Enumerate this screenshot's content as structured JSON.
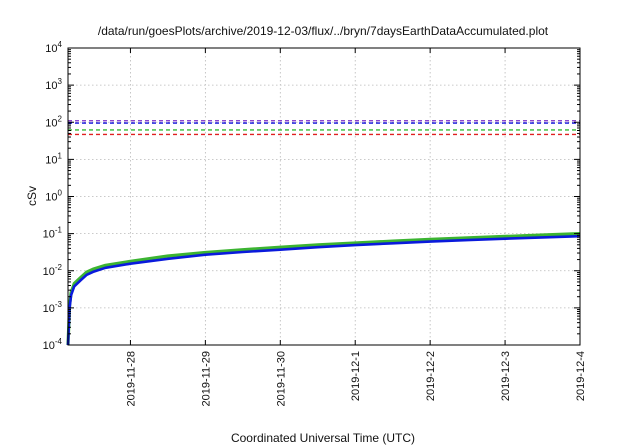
{
  "chart_data": {
    "type": "line",
    "title": "/data/run/goesPlots/archive/2019-12-03/flux/../bryn/7daysEarthDataAccumulated.plot",
    "xlabel": "Coordinated Universal Time (UTC)",
    "ylabel": "cSv",
    "y_scale": "log",
    "ylim": [
      0.0001,
      10000
    ],
    "xlim": [
      "2019-11-27T04:00",
      "2019-12-04T00:00"
    ],
    "grid": true,
    "x_ticks": [
      {
        "x": "2019-11-28T00:00",
        "label": "2019-11-28"
      },
      {
        "x": "2019-11-29T00:00",
        "label": "2019-11-29"
      },
      {
        "x": "2019-11-30T00:00",
        "label": "2019-11-30"
      },
      {
        "x": "2019-12-01T00:00",
        "label": "2019-12-1"
      },
      {
        "x": "2019-12-02T00:00",
        "label": "2019-12-2"
      },
      {
        "x": "2019-12-03T00:00",
        "label": "2019-12-3"
      },
      {
        "x": "2019-12-04T00:00",
        "label": "2019-12-4"
      }
    ],
    "y_ticks": [
      {
        "value": 0.0001,
        "base": "10",
        "exp": "-4"
      },
      {
        "value": 0.001,
        "base": "10",
        "exp": "-3"
      },
      {
        "value": 0.01,
        "base": "10",
        "exp": "-2"
      },
      {
        "value": 0.1,
        "base": "10",
        "exp": "-1"
      },
      {
        "value": 1,
        "base": "10",
        "exp": "0"
      },
      {
        "value": 10,
        "base": "10",
        "exp": "1"
      },
      {
        "value": 100,
        "base": "10",
        "exp": "2"
      },
      {
        "value": 1000,
        "base": "10",
        "exp": "3"
      },
      {
        "value": 10000,
        "base": "10",
        "exp": "4"
      }
    ],
    "thresholds": [
      {
        "value": 110,
        "color": "#7b2fc4"
      },
      {
        "value": 95,
        "color": "#0a0adc"
      },
      {
        "value": 62,
        "color": "#33bb33"
      },
      {
        "value": 47,
        "color": "#e02020"
      }
    ],
    "series": [
      {
        "color": "#3cb432",
        "x": [
          "2019-11-27T04:00",
          "2019-11-27T04:30",
          "2019-11-27T05:00",
          "2019-11-27T06:00",
          "2019-11-27T08:00",
          "2019-11-27T10:00",
          "2019-11-27T12:00",
          "2019-11-27T16:00",
          "2019-11-28T00:00",
          "2019-11-28T12:00",
          "2019-11-29T00:00",
          "2019-11-29T12:00",
          "2019-11-30T00:00",
          "2019-11-30T12:00",
          "2019-12-01T00:00",
          "2019-12-01T12:00",
          "2019-12-02T00:00",
          "2019-12-02T12:00",
          "2019-12-03T00:00",
          "2019-12-03T12:00",
          "2019-12-04T00:00"
        ],
        "y": [
          0.0001,
          0.0012,
          0.0026,
          0.0045,
          0.0065,
          0.0092,
          0.011,
          0.014,
          0.018,
          0.025,
          0.031,
          0.037,
          0.043,
          0.05,
          0.056,
          0.063,
          0.07,
          0.077,
          0.084,
          0.092,
          0.1
        ]
      },
      {
        "color": "#0a1adc",
        "x": [
          "2019-11-27T04:00",
          "2019-11-27T04:30",
          "2019-11-27T05:00",
          "2019-11-27T06:00",
          "2019-11-27T08:00",
          "2019-11-27T10:00",
          "2019-11-27T12:00",
          "2019-11-27T16:00",
          "2019-11-28T00:00",
          "2019-11-28T12:00",
          "2019-11-29T00:00",
          "2019-11-29T12:00",
          "2019-11-30T00:00",
          "2019-11-30T12:00",
          "2019-12-01T00:00",
          "2019-12-01T12:00",
          "2019-12-02T00:00",
          "2019-12-02T12:00",
          "2019-12-03T00:00",
          "2019-12-03T12:00",
          "2019-12-04T00:00"
        ],
        "y": [
          0.0001,
          0.001,
          0.0022,
          0.0038,
          0.0055,
          0.0078,
          0.0093,
          0.012,
          0.0155,
          0.021,
          0.027,
          0.032,
          0.037,
          0.043,
          0.049,
          0.055,
          0.061,
          0.067,
          0.073,
          0.079,
          0.085
        ]
      }
    ]
  }
}
